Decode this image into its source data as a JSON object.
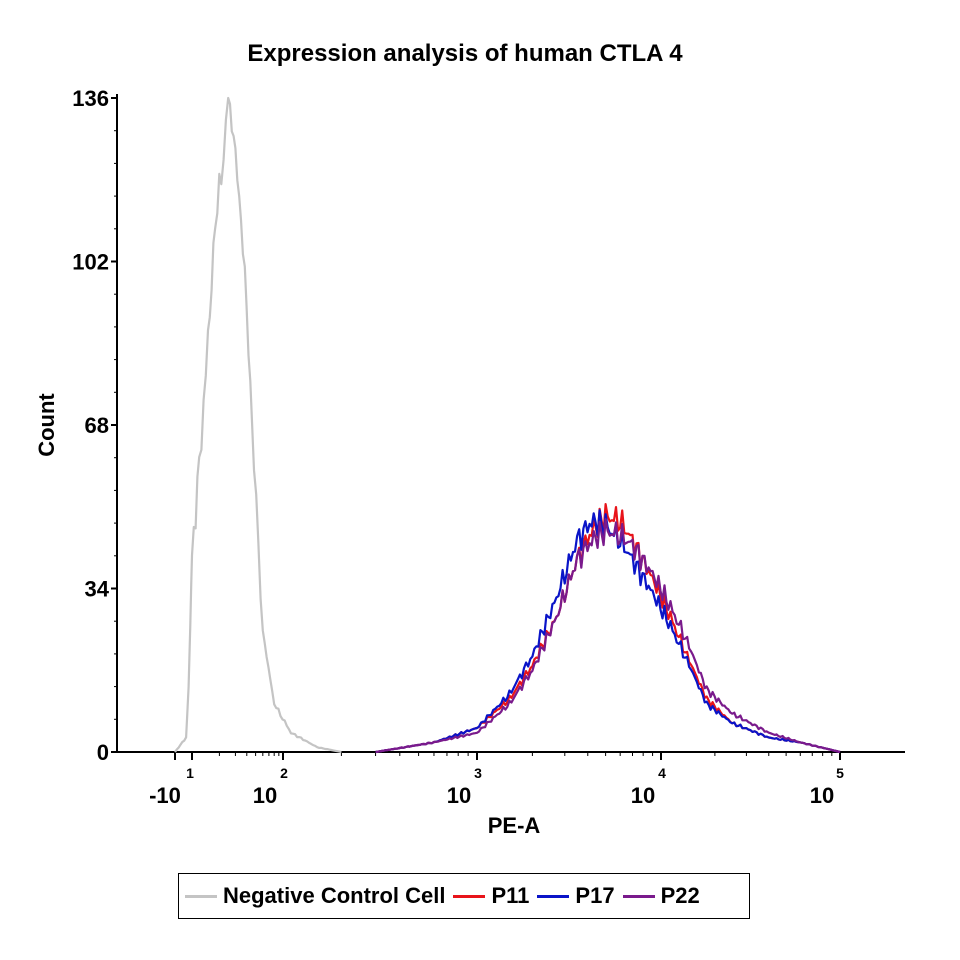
{
  "chart_data": {
    "type": "line",
    "title": "Expression analysis of human CTLA 4",
    "xlabel": "PE-A",
    "ylabel": "Count",
    "x_scale": "log",
    "xlim": [
      -10,
      100000
    ],
    "ylim": [
      0,
      136
    ],
    "yticks": [
      0,
      34,
      68,
      102,
      136
    ],
    "xticks": [
      {
        "base": "-10",
        "exp": ""
      },
      {
        "base": "10",
        "exp": "1"
      },
      {
        "base": "10",
        "exp": "2"
      },
      {
        "base": "10",
        "exp": "3"
      },
      {
        "base": "10",
        "exp": "4"
      },
      {
        "base": "10",
        "exp": "5"
      }
    ],
    "legend_position": "bottom",
    "series": [
      {
        "name": "Negative Control Cell",
        "color": "#c4c4c4",
        "x": [
          -10,
          3,
          6,
          8,
          10,
          12,
          15,
          18,
          21,
          25,
          30,
          38,
          48,
          60,
          80,
          110,
          150,
          200
        ],
        "y": [
          0,
          3,
          13,
          28,
          40,
          60,
          85,
          110,
          120,
          136,
          125,
          100,
          60,
          25,
          10,
          4,
          1,
          0
        ]
      },
      {
        "name": "P11",
        "color": "#e8141a",
        "x": [
          300,
          600,
          1000,
          1500,
          2000,
          2700,
          3500,
          4200,
          5000,
          6000,
          7000,
          9000,
          11000,
          14000,
          18000,
          25000,
          40000,
          60000,
          100000
        ],
        "y": [
          0,
          2,
          5,
          11,
          18,
          28,
          40,
          46,
          49,
          48,
          44,
          36,
          29,
          20,
          11,
          6,
          3,
          2,
          0
        ]
      },
      {
        "name": "P17",
        "color": "#0a14c8",
        "x": [
          300,
          600,
          1000,
          1500,
          2000,
          2700,
          3500,
          4200,
          5000,
          6000,
          7000,
          9000,
          11000,
          14000,
          18000,
          25000,
          40000,
          60000,
          100000
        ],
        "y": [
          0,
          2,
          5,
          12,
          20,
          32,
          44,
          48,
          47,
          44,
          40,
          33,
          27,
          19,
          10,
          6,
          3,
          2,
          0
        ]
      },
      {
        "name": "P22",
        "color": "#7a1a8c",
        "x": [
          300,
          600,
          1000,
          1500,
          2000,
          2700,
          3500,
          4200,
          5000,
          6000,
          7000,
          9000,
          11000,
          14000,
          18000,
          25000,
          40000,
          60000,
          100000
        ],
        "y": [
          0,
          2,
          4,
          10,
          17,
          28,
          40,
          44,
          46,
          45,
          43,
          37,
          31,
          23,
          13,
          8,
          4,
          2,
          0
        ]
      }
    ]
  }
}
